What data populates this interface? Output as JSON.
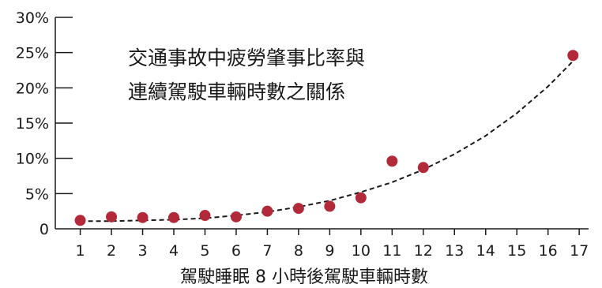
{
  "chart_data": {
    "type": "scatter",
    "title_lines": [
      "交通事故中疲勞肇事比率與",
      "連續駕駛車輛時數之關係"
    ],
    "xlabel": "駕駛睡眠 8 小時後駕駛車輛時數",
    "ylabel": "",
    "x_ticks": [
      1,
      2,
      3,
      4,
      5,
      6,
      7,
      8,
      9,
      10,
      11,
      12,
      13,
      14,
      15,
      16,
      17
    ],
    "y_ticks": [
      {
        "value": 0,
        "label": "0"
      },
      {
        "value": 5,
        "label": "5%"
      },
      {
        "value": 10,
        "label": "10%"
      },
      {
        "value": 15,
        "label": "15%"
      },
      {
        "value": 20,
        "label": "20%"
      },
      {
        "value": 25,
        "label": "25%"
      },
      {
        "value": 30,
        "label": "30%"
      }
    ],
    "xlim": [
      0.2,
      17.3
    ],
    "ylim": [
      0,
      30
    ],
    "grid": false,
    "point_color": "#b22a3a",
    "trend_color": "#1a1a1a",
    "series": [
      {
        "points": [
          {
            "x": 1,
            "y": 1.2
          },
          {
            "x": 2,
            "y": 1.7
          },
          {
            "x": 3,
            "y": 1.6
          },
          {
            "x": 4,
            "y": 1.6
          },
          {
            "x": 5,
            "y": 1.9
          },
          {
            "x": 6,
            "y": 1.7
          },
          {
            "x": 7,
            "y": 2.5
          },
          {
            "x": 8,
            "y": 2.9
          },
          {
            "x": 9,
            "y": 3.2
          },
          {
            "x": 10,
            "y": 4.4
          },
          {
            "x": 11,
            "y": 9.6
          },
          {
            "x": 12,
            "y": 8.7
          },
          {
            "x": 16.8,
            "y": 24.6
          }
        ]
      }
    ],
    "trendline": {
      "type": "exponential",
      "points": [
        {
          "x": 1,
          "y": 1.1
        },
        {
          "x": 2,
          "y": 1.1
        },
        {
          "x": 3,
          "y": 1.2
        },
        {
          "x": 4,
          "y": 1.3
        },
        {
          "x": 5,
          "y": 1.5
        },
        {
          "x": 6,
          "y": 1.9
        },
        {
          "x": 7,
          "y": 2.4
        },
        {
          "x": 8,
          "y": 3.1
        },
        {
          "x": 9,
          "y": 4.0
        },
        {
          "x": 10,
          "y": 5.2
        },
        {
          "x": 11,
          "y": 6.6
        },
        {
          "x": 12,
          "y": 8.4
        },
        {
          "x": 13,
          "y": 10.6
        },
        {
          "x": 14,
          "y": 13.2
        },
        {
          "x": 15,
          "y": 16.4
        },
        {
          "x": 16,
          "y": 20.2
        },
        {
          "x": 16.8,
          "y": 23.8
        }
      ]
    }
  }
}
